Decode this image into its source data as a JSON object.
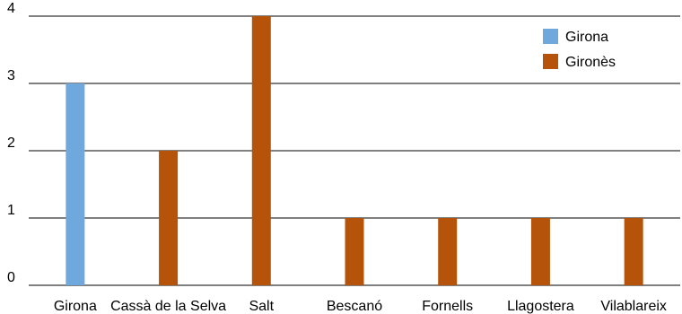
{
  "chart_data": {
    "type": "bar",
    "categories": [
      "Girona",
      "Cassà de la Selva",
      "Salt",
      "Bescanó",
      "Fornells",
      "Llagostera",
      "Vilablareix"
    ],
    "series": [
      {
        "name": "Girona",
        "color": "#6fa8dc",
        "values": [
          3,
          null,
          null,
          null,
          null,
          null,
          null
        ]
      },
      {
        "name": "Gironès",
        "color": "#b45309",
        "values": [
          null,
          2,
          4,
          1,
          1,
          1,
          1
        ]
      }
    ],
    "yticks": [
      0,
      1,
      2,
      3,
      4
    ],
    "ylim": [
      0,
      4
    ],
    "grid": true,
    "legend_position": "top-right",
    "title": "",
    "xlabel": "",
    "ylabel": ""
  }
}
